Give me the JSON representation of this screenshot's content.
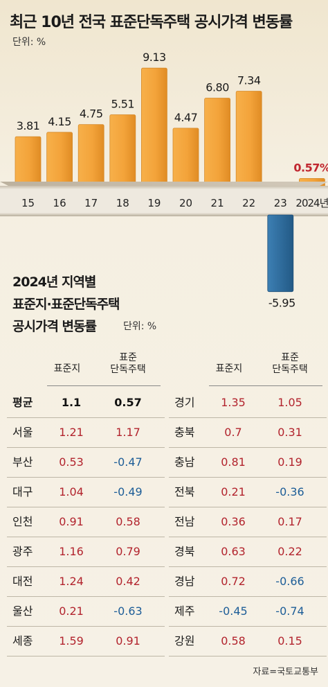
{
  "header": {
    "title": "최근 10년 전국 표준단독주택 공시가격 변동률",
    "unit": "단위: %"
  },
  "chart_data": {
    "type": "bar",
    "title": "최근 10년 전국 표준단독주택 공시가격 변동률",
    "unit": "%",
    "categories": [
      "15",
      "16",
      "17",
      "18",
      "19",
      "20",
      "21",
      "22",
      "23",
      "2024년"
    ],
    "values": [
      3.81,
      4.15,
      4.75,
      5.51,
      9.13,
      4.47,
      6.8,
      7.34,
      -5.95,
      0.57
    ],
    "value_labels": [
      "3.81",
      "4.15",
      "4.75",
      "5.51",
      "9.13",
      "4.47",
      "6.80",
      "7.34",
      "-5.95",
      "0.57%"
    ],
    "colors": {
      "positive": "#f2a33a",
      "negative": "#2f6b9a",
      "highlight_label": "#c0262f"
    },
    "grid": false
  },
  "section": {
    "title_line1": "2024년 지역별",
    "title_line2": "표준지·표준단독주택",
    "title_line3": "공시가격 변동률",
    "unit": "단위: %"
  },
  "table": {
    "col1": "표준지",
    "col2_line1": "표준",
    "col2_line2": "단독주택",
    "left_rows": [
      {
        "name": "평균",
        "v1": "1.1",
        "v2": "0.57",
        "s1": "blk",
        "s2": "blk"
      },
      {
        "name": "서울",
        "v1": "1.21",
        "v2": "1.17",
        "s1": "pos",
        "s2": "pos"
      },
      {
        "name": "부산",
        "v1": "0.53",
        "v2": "-0.47",
        "s1": "pos",
        "s2": "neg"
      },
      {
        "name": "대구",
        "v1": "1.04",
        "v2": "-0.49",
        "s1": "pos",
        "s2": "neg"
      },
      {
        "name": "인천",
        "v1": "0.91",
        "v2": "0.58",
        "s1": "pos",
        "s2": "pos"
      },
      {
        "name": "광주",
        "v1": "1.16",
        "v2": "0.79",
        "s1": "pos",
        "s2": "pos"
      },
      {
        "name": "대전",
        "v1": "1.24",
        "v2": "0.42",
        "s1": "pos",
        "s2": "pos"
      },
      {
        "name": "울산",
        "v1": "0.21",
        "v2": "-0.63",
        "s1": "pos",
        "s2": "neg"
      },
      {
        "name": "세종",
        "v1": "1.59",
        "v2": "0.91",
        "s1": "pos",
        "s2": "pos"
      }
    ],
    "right_rows": [
      {
        "name": "경기",
        "v1": "1.35",
        "v2": "1.05",
        "s1": "pos",
        "s2": "pos"
      },
      {
        "name": "충북",
        "v1": "0.7",
        "v2": "0.31",
        "s1": "pos",
        "s2": "pos"
      },
      {
        "name": "충남",
        "v1": "0.81",
        "v2": "0.19",
        "s1": "pos",
        "s2": "pos"
      },
      {
        "name": "전북",
        "v1": "0.21",
        "v2": "-0.36",
        "s1": "pos",
        "s2": "neg"
      },
      {
        "name": "전남",
        "v1": "0.36",
        "v2": "0.17",
        "s1": "pos",
        "s2": "pos"
      },
      {
        "name": "경북",
        "v1": "0.63",
        "v2": "0.22",
        "s1": "pos",
        "s2": "pos"
      },
      {
        "name": "경남",
        "v1": "0.72",
        "v2": "-0.66",
        "s1": "pos",
        "s2": "neg"
      },
      {
        "name": "제주",
        "v1": "-0.45",
        "v2": "-0.74",
        "s1": "neg",
        "s2": "neg"
      },
      {
        "name": "강원",
        "v1": "0.58",
        "v2": "0.15",
        "s1": "pos",
        "s2": "pos"
      }
    ]
  },
  "source": "자료=국토교통부"
}
